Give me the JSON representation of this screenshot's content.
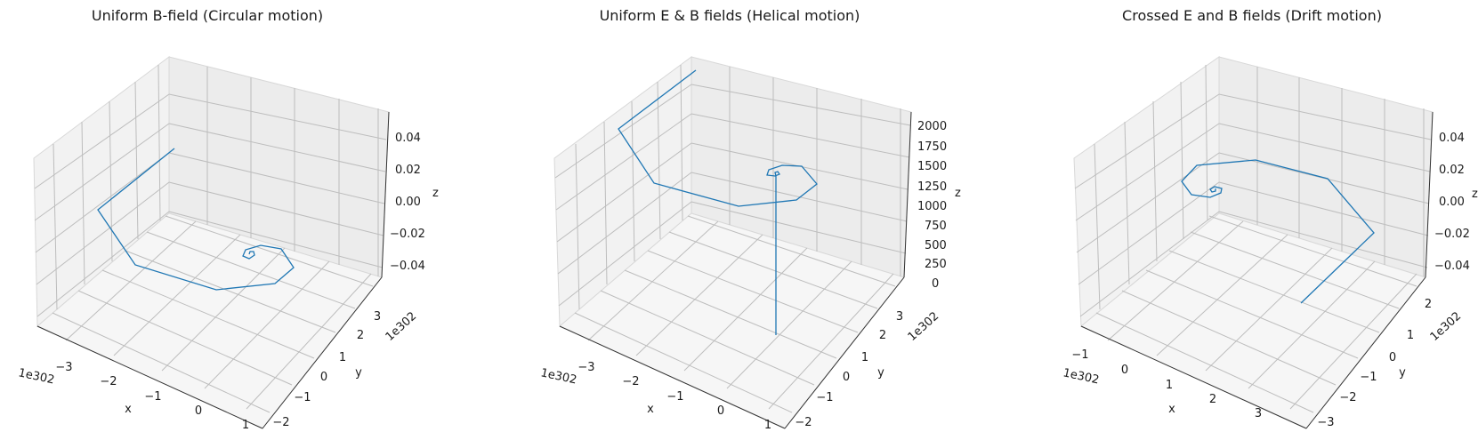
{
  "chart_data": [
    {
      "type": "line",
      "title": "Uniform B-field (Circular motion)",
      "xlabel": "x",
      "ylabel": "y",
      "zlabel": "z",
      "x_offset_text": "1e302",
      "y_offset_text": "1e302",
      "x_ticks": [
        "−3",
        "−2",
        "−1",
        "0",
        "1"
      ],
      "y_ticks": [
        "−2",
        "−1",
        "0",
        "1",
        "2",
        "3"
      ],
      "z_ticks": [
        "−0.04",
        "−0.02",
        "0.00",
        "0.02",
        "0.04"
      ],
      "series_color": "#1f77b4"
    },
    {
      "type": "line",
      "title": "Uniform E & B fields (Helical motion)",
      "xlabel": "x",
      "ylabel": "y",
      "zlabel": "z",
      "x_offset_text": "1e302",
      "y_offset_text": "1e302",
      "x_ticks": [
        "−3",
        "−2",
        "−1",
        "0",
        "1"
      ],
      "y_ticks": [
        "−2",
        "−1",
        "0",
        "1",
        "2",
        "3"
      ],
      "z_ticks": [
        "0",
        "250",
        "500",
        "750",
        "1000",
        "1250",
        "1500",
        "1750",
        "2000"
      ],
      "series_color": "#1f77b4"
    },
    {
      "type": "line",
      "title": "Crossed E and B fields (Drift motion)",
      "xlabel": "x",
      "ylabel": "y",
      "zlabel": "z",
      "x_offset_text": "1e302",
      "y_offset_text": "1e302",
      "x_ticks": [
        "−1",
        "0",
        "1",
        "2",
        "3"
      ],
      "y_ticks": [
        "−3",
        "−2",
        "−1",
        "0",
        "1",
        "2"
      ],
      "z_ticks": [
        "−0.04",
        "−0.02",
        "0.00",
        "0.02",
        "0.04"
      ],
      "series_color": "#1f77b4"
    }
  ]
}
